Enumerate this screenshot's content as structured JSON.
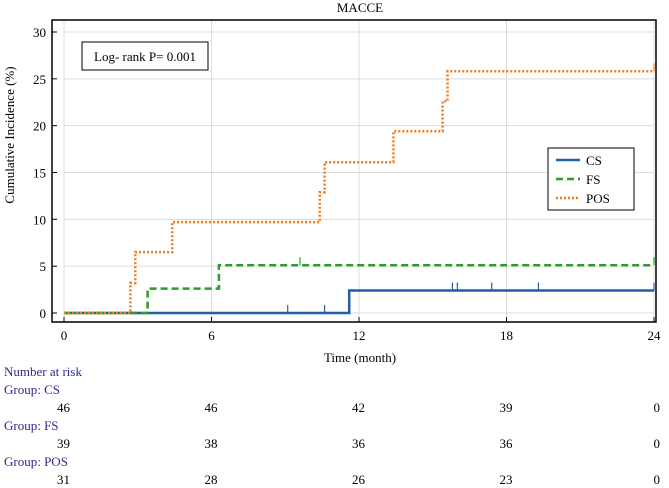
{
  "chart_data": {
    "type": "line",
    "title": "MACCE",
    "xlabel": "Time (month)",
    "ylabel": "Cumulative Incidence (%)",
    "xlim": [
      0,
      24
    ],
    "ylim": [
      0,
      30
    ],
    "xticks": [
      "0",
      "6",
      "12",
      "18",
      "24"
    ],
    "yticks": [
      "0",
      "5",
      "10",
      "15",
      "20",
      "25",
      "30"
    ],
    "grid": true,
    "annotation": "Log- rank P= 0.001",
    "legend_position": "right",
    "series": [
      {
        "name": "CS",
        "color": "#1f5fa6",
        "style": "solid",
        "x": [
          0,
          11.6,
          11.6,
          24
        ],
        "y": [
          0,
          0,
          2.4,
          2.4
        ],
        "censor": [
          [
            9.1,
            0
          ],
          [
            10.6,
            0
          ],
          [
            15.8,
            2.4
          ],
          [
            16.0,
            2.4
          ],
          [
            17.4,
            2.4
          ],
          [
            19.3,
            2.4
          ],
          [
            24,
            2.4
          ]
        ]
      },
      {
        "name": "FS",
        "color": "#2a9d2a",
        "style": "dashed",
        "x": [
          0,
          3.4,
          3.4,
          6.3,
          6.3,
          24
        ],
        "y": [
          0,
          0,
          2.6,
          2.6,
          5.1,
          5.1
        ],
        "censor": [
          [
            9.6,
            5.1
          ],
          [
            24,
            5.1
          ]
        ]
      },
      {
        "name": "POS",
        "color": "#f07a1e",
        "style": "dotted",
        "x": [
          0,
          2.7,
          2.7,
          2.9,
          2.9,
          4.4,
          4.4,
          10.4,
          10.4,
          10.6,
          10.6,
          13.4,
          13.4,
          15.4,
          15.4,
          15.6,
          15.6,
          24
        ],
        "y": [
          0,
          0,
          3.2,
          3.2,
          6.5,
          6.5,
          9.7,
          9.7,
          12.9,
          12.9,
          16.1,
          16.1,
          19.4,
          19.4,
          22.6,
          22.6,
          25.8,
          25.8
        ],
        "censor": [
          [
            24,
            25.8
          ]
        ]
      }
    ],
    "number_at_risk": {
      "title": "Number at risk",
      "times": [
        0,
        6,
        12,
        18,
        24
      ],
      "groups": [
        {
          "label": "Group: CS",
          "values": [
            "46",
            "46",
            "42",
            "39",
            "0"
          ]
        },
        {
          "label": "Group: FS",
          "values": [
            "39",
            "38",
            "36",
            "36",
            "0"
          ]
        },
        {
          "label": "Group: POS",
          "values": [
            "31",
            "28",
            "26",
            "23",
            "0"
          ]
        }
      ]
    }
  }
}
